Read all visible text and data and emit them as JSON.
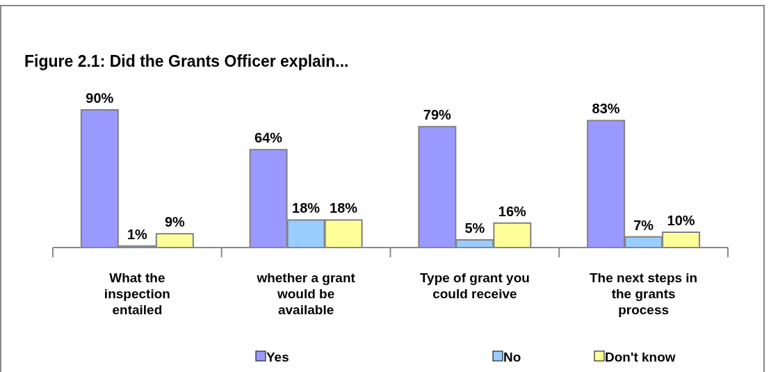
{
  "chart_data": {
    "type": "bar",
    "title": "Figure 2.1: Did the Grants Officer explain...",
    "categories": [
      "What the\ninspection\nentailed",
      "whether a grant\nwould be\navailable",
      "Type of grant you\ncould receive",
      "The next steps in\nthe grants\nprocess"
    ],
    "series": [
      {
        "name": "Yes",
        "color": "#9999ff",
        "values": [
          90,
          64,
          79,
          83
        ],
        "value_labels": [
          "90%",
          "64%",
          "79%",
          "83%"
        ]
      },
      {
        "name": "No",
        "color": "#99ccff",
        "values": [
          1,
          18,
          5,
          7
        ],
        "value_labels": [
          "1%",
          "18%",
          "5%",
          "7%"
        ]
      },
      {
        "name": "Don't know",
        "color": "#ffff99",
        "values": [
          9,
          18,
          16,
          10
        ],
        "value_labels": [
          "9%",
          "18%",
          "16%",
          "10%"
        ]
      }
    ],
    "legend": "bottom"
  }
}
